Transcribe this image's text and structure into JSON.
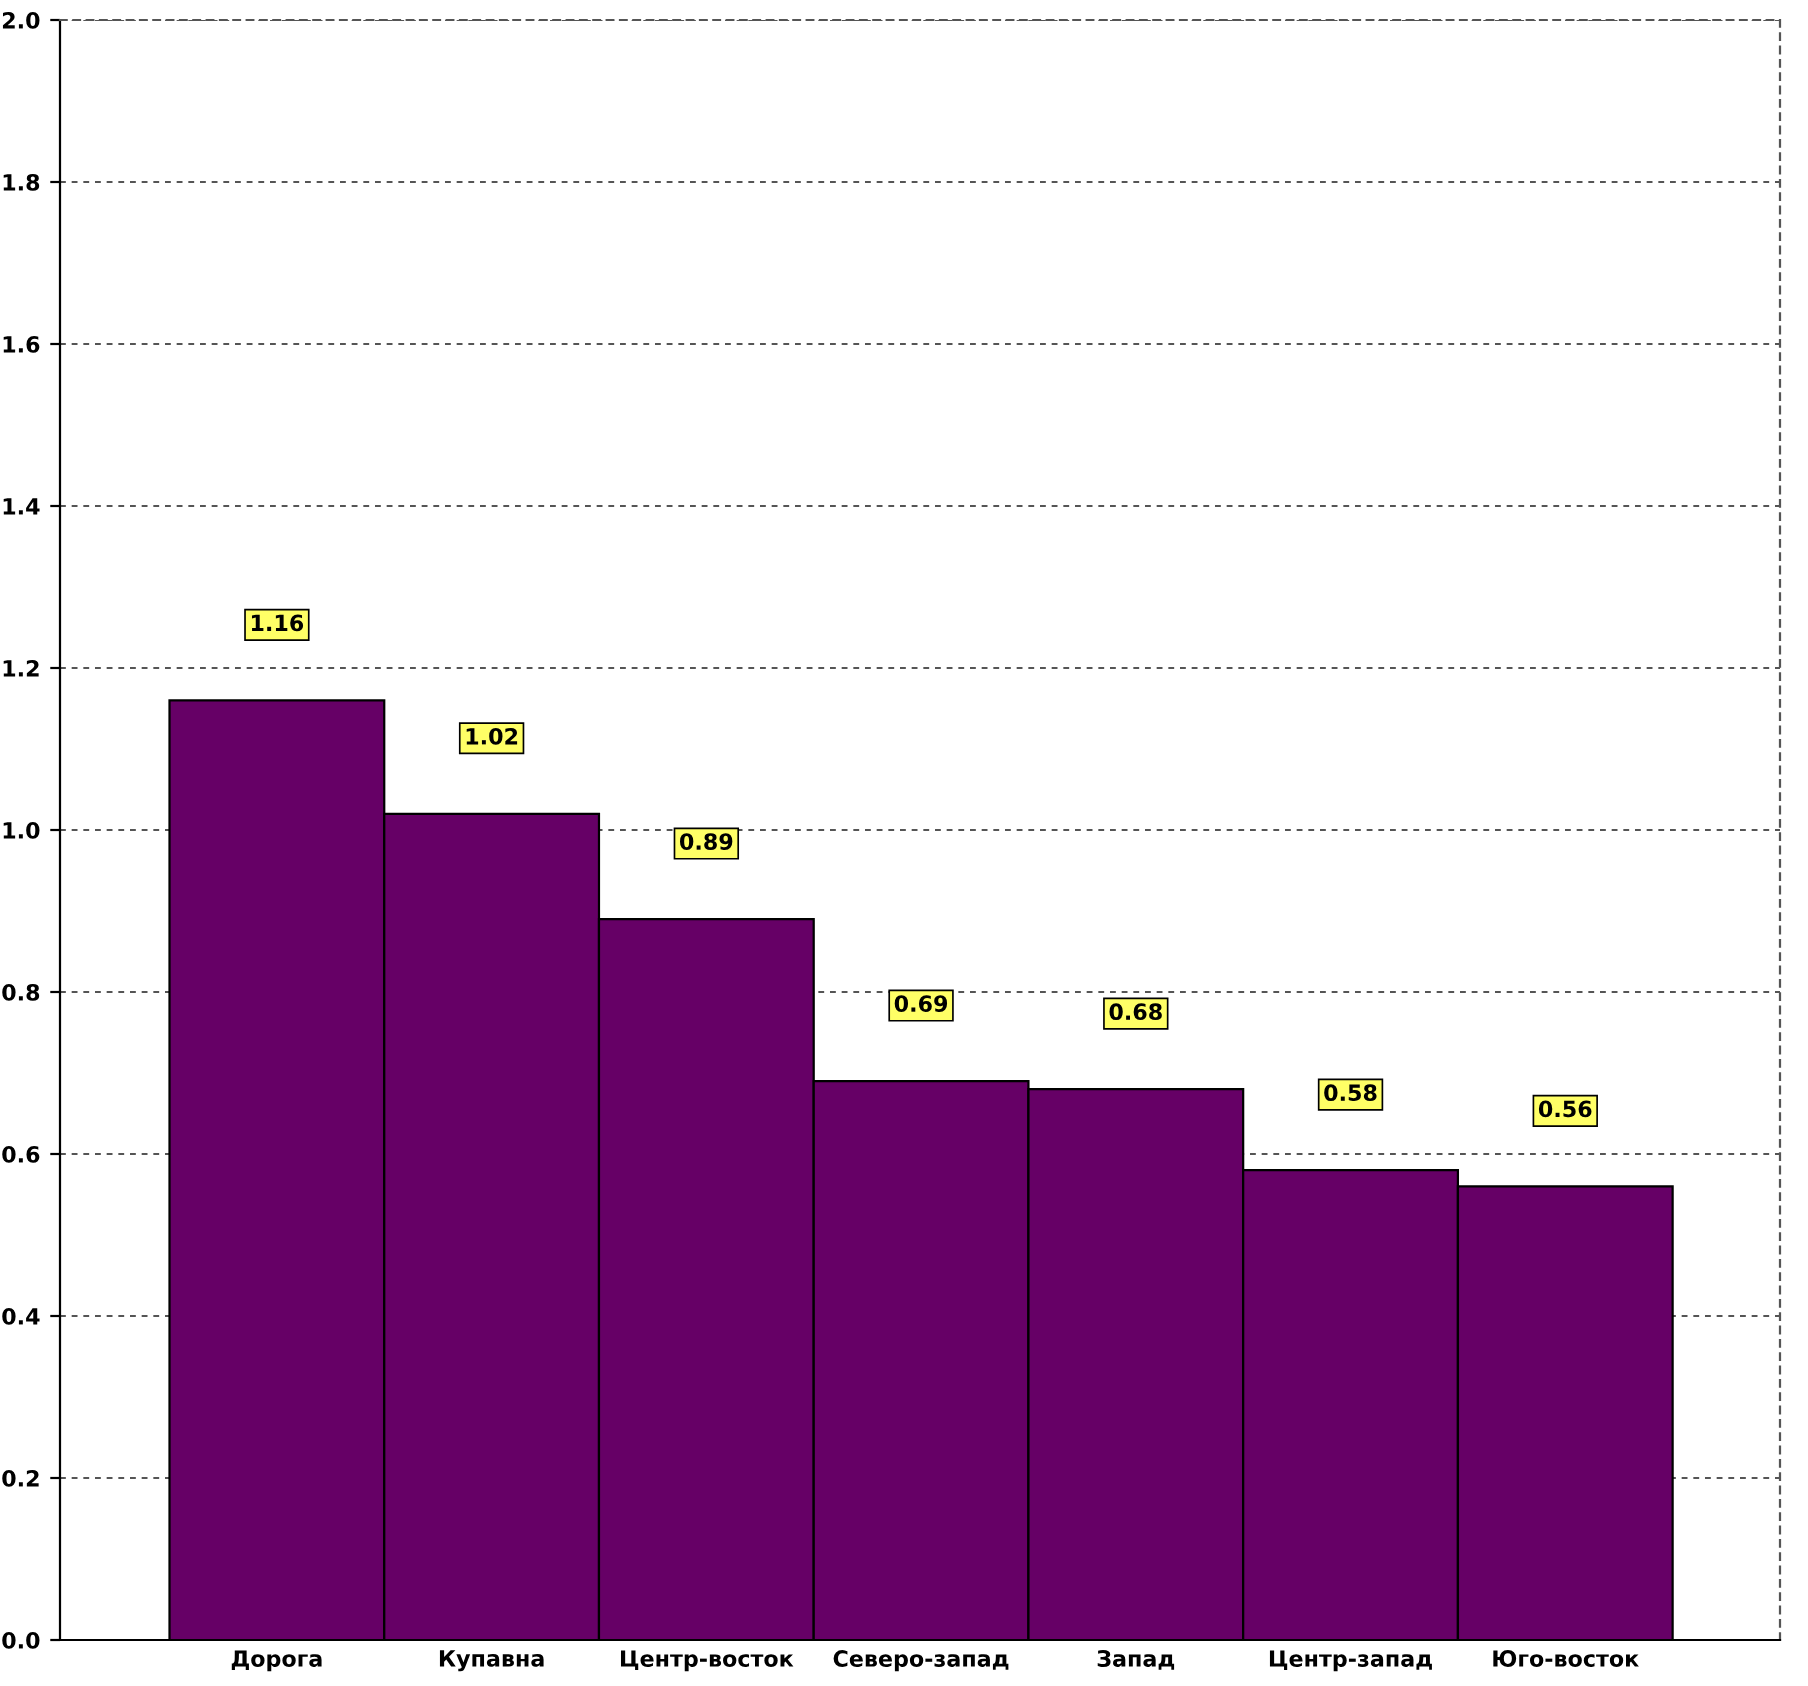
{
  "chart_data": {
    "type": "bar",
    "categories": [
      "Дорога",
      "Купавна",
      "Центр-восток",
      "Северо-запад",
      "Запад",
      "Центр-запад",
      "Юго-восток"
    ],
    "values": [
      1.16,
      1.02,
      0.89,
      0.69,
      0.68,
      0.58,
      0.56
    ],
    "color": "#660066",
    "ylim": [
      0.0,
      2.0
    ],
    "yticks": [
      {
        "value": 0,
        "label": "0.0"
      },
      0.2,
      0.4,
      0.6,
      0.8,
      {
        "value": 1,
        "label": "1.0"
      },
      1.2,
      1.4,
      1.6,
      1.8,
      {
        "value": 2,
        "label": "2.0"
      }
    ],
    "grid": "y",
    "data_labels": true
  }
}
